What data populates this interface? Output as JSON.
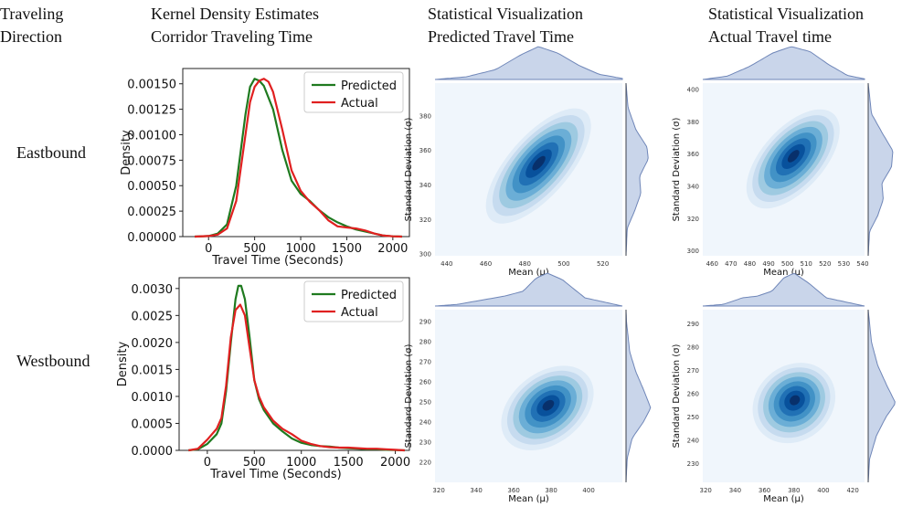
{
  "headers": {
    "direction": [
      "Traveling",
      "Direction"
    ],
    "kde": [
      "Kernel Density Estimates",
      "Corridor Traveling Time"
    ],
    "pred": [
      "Statistical Visualization",
      "Predicted Travel Time"
    ],
    "actual": [
      "Statistical Visualization",
      "Actual Travel time"
    ]
  },
  "rows": [
    "Eastbound",
    "Westbound"
  ],
  "colors": {
    "predicted": "#1f7a1f",
    "actual": "#e02020",
    "kde_outline": "#6f86b8",
    "kde_fill": "#c9d5ea"
  },
  "chart_data": [
    {
      "id": "east_kde",
      "type": "line",
      "xlabel": "Travel Time (Seconds)",
      "ylabel": "Density",
      "xlim": [
        -280,
        2180
      ],
      "ylim": [
        0,
        0.00165
      ],
      "xticks": [
        0,
        500,
        1000,
        1500,
        2000
      ],
      "yticks": [
        "0.00000",
        "0.00025",
        "0.00050",
        "0.00075",
        "0.00100",
        "0.00125",
        "0.00150"
      ],
      "ytick_values": [
        0,
        0.00025,
        0.0005,
        0.00075,
        0.001,
        0.00125,
        0.0015
      ],
      "legend": [
        "Predicted",
        "Actual"
      ],
      "series": [
        {
          "name": "Predicted",
          "x": [
            -150,
            0,
            100,
            200,
            300,
            400,
            450,
            500,
            550,
            600,
            700,
            800,
            900,
            1000,
            1100,
            1200,
            1300,
            1400,
            1500,
            1600,
            1700,
            1800,
            1900,
            2000,
            2100
          ],
          "y": [
            0,
            5e-06,
            3e-05,
            0.00012,
            0.0005,
            0.0012,
            0.00147,
            0.00155,
            0.00153,
            0.00148,
            0.00125,
            0.00085,
            0.00055,
            0.00042,
            0.00035,
            0.00026,
            0.00019,
            0.00014,
            0.0001,
            7e-05,
            5e-05,
            3e-05,
            1e-05,
            3e-06,
            0
          ]
        },
        {
          "name": "Actual",
          "x": [
            -150,
            0,
            100,
            200,
            300,
            400,
            450,
            500,
            550,
            600,
            650,
            700,
            800,
            900,
            1000,
            1100,
            1200,
            1300,
            1400,
            1500,
            1600,
            1700,
            1800,
            1900,
            2000,
            2100
          ],
          "y": [
            0,
            5e-06,
            2e-05,
            8e-05,
            0.00035,
            0.001,
            0.00132,
            0.00147,
            0.00153,
            0.00155,
            0.00152,
            0.00142,
            0.00105,
            0.00065,
            0.00045,
            0.00034,
            0.00026,
            0.00016,
            0.0001,
            9e-05,
            8e-05,
            6e-05,
            3e-05,
            1e-05,
            3e-06,
            0
          ]
        }
      ]
    },
    {
      "id": "west_kde",
      "type": "line",
      "xlabel": "Travel Time (Seconds)",
      "ylabel": "Density",
      "xlim": [
        -300,
        2150
      ],
      "ylim": [
        0,
        0.0032
      ],
      "xticks": [
        0,
        500,
        1000,
        1500,
        2000
      ],
      "yticks": [
        "0.0000",
        "0.0005",
        "0.0010",
        "0.0015",
        "0.0020",
        "0.0025",
        "0.0030"
      ],
      "ytick_values": [
        0,
        0.0005,
        0.001,
        0.0015,
        0.002,
        0.0025,
        0.003
      ],
      "legend": [
        "Predicted",
        "Actual"
      ],
      "series": [
        {
          "name": "Predicted",
          "x": [
            -200,
            -100,
            0,
            100,
            150,
            200,
            250,
            300,
            330,
            360,
            400,
            450,
            500,
            550,
            600,
            700,
            800,
            900,
            1000,
            1100,
            1200,
            1300,
            1400,
            1500,
            1600,
            1700,
            1800,
            1900,
            2000,
            2100
          ],
          "y": [
            0,
            2e-05,
            0.00012,
            0.0003,
            0.0005,
            0.0011,
            0.002,
            0.0028,
            0.00305,
            0.00305,
            0.0028,
            0.0021,
            0.0013,
            0.00095,
            0.00075,
            0.0005,
            0.00035,
            0.00022,
            0.00014,
            0.0001,
            8e-05,
            7e-05,
            5e-05,
            4e-05,
            3e-05,
            2e-05,
            2e-05,
            1e-05,
            5e-06,
            0
          ]
        },
        {
          "name": "Actual",
          "x": [
            -200,
            -100,
            0,
            100,
            150,
            200,
            250,
            300,
            350,
            400,
            450,
            500,
            550,
            600,
            700,
            800,
            900,
            1000,
            1100,
            1200,
            1300,
            1400,
            1500,
            1600,
            1700,
            1800,
            1900,
            2000,
            2100
          ],
          "y": [
            0,
            3e-05,
            0.0002,
            0.0004,
            0.0006,
            0.0012,
            0.0021,
            0.0026,
            0.0027,
            0.0025,
            0.0019,
            0.0013,
            0.001,
            0.0008,
            0.00055,
            0.0004,
            0.0003,
            0.00018,
            0.00012,
            8e-05,
            6e-05,
            5e-05,
            5e-05,
            4e-05,
            3e-05,
            3e-05,
            2e-05,
            1e-05,
            0
          ]
        }
      ]
    },
    {
      "id": "east_pred_joint",
      "type": "heatmap",
      "xlabel": "Mean (μ)",
      "ylabel": "Standard Deviation (σ)",
      "xlim": [
        434,
        530
      ],
      "ylim": [
        299,
        399
      ],
      "xticks": [
        440,
        460,
        480,
        500,
        520
      ],
      "yticks": [
        300,
        320,
        340,
        360,
        380
      ],
      "center": [
        487,
        351
      ],
      "spread": [
        16,
        11
      ],
      "rho": 0.72,
      "levels": 9,
      "marg_x": [
        [
          434,
          0
        ],
        [
          450,
          0.08
        ],
        [
          465,
          0.3
        ],
        [
          478,
          0.75
        ],
        [
          487,
          1
        ],
        [
          497,
          0.8
        ],
        [
          508,
          0.42
        ],
        [
          518,
          0.16
        ],
        [
          530,
          0.03
        ]
      ],
      "marg_y": [
        [
          299,
          0
        ],
        [
          315,
          0.05
        ],
        [
          325,
          0.35
        ],
        [
          335,
          0.6
        ],
        [
          345,
          0.55
        ],
        [
          355,
          0.9
        ],
        [
          362,
          0.85
        ],
        [
          372,
          0.4
        ],
        [
          385,
          0.08
        ],
        [
          399,
          0
        ]
      ]
    },
    {
      "id": "east_actual_joint",
      "type": "heatmap",
      "xlabel": "Mean (μ)",
      "ylabel": "Standard Deviation (σ)",
      "xlim": [
        455,
        541
      ],
      "ylim": [
        297,
        404
      ],
      "xticks": [
        460,
        470,
        480,
        490,
        500,
        510,
        520,
        530,
        540
      ],
      "yticks": [
        300,
        320,
        340,
        360,
        380,
        400
      ],
      "center": [
        503,
        357
      ],
      "spread": [
        14,
        12
      ],
      "rho": 0.7,
      "levels": 9,
      "marg_x": [
        [
          455,
          0
        ],
        [
          468,
          0.1
        ],
        [
          480,
          0.4
        ],
        [
          492,
          0.8
        ],
        [
          502,
          1
        ],
        [
          512,
          0.85
        ],
        [
          522,
          0.45
        ],
        [
          532,
          0.12
        ],
        [
          541,
          0.02
        ]
      ],
      "marg_y": [
        [
          297,
          0
        ],
        [
          312,
          0.05
        ],
        [
          322,
          0.35
        ],
        [
          332,
          0.55
        ],
        [
          342,
          0.5
        ],
        [
          352,
          0.85
        ],
        [
          362,
          0.9
        ],
        [
          372,
          0.55
        ],
        [
          385,
          0.12
        ],
        [
          404,
          0
        ]
      ]
    },
    {
      "id": "west_pred_joint",
      "type": "heatmap",
      "xlabel": "Mean (μ)",
      "ylabel": "Standard Deviation (σ)",
      "xlim": [
        318,
        418
      ],
      "ylim": [
        210,
        296
      ],
      "xticks": [
        320,
        340,
        360,
        380,
        400
      ],
      "yticks": [
        220,
        230,
        240,
        250,
        260,
        270,
        280,
        290
      ],
      "center": [
        378,
        247
      ],
      "spread": [
        12,
        11
      ],
      "rho": 0.45,
      "levels": 9,
      "marg_x": [
        [
          318,
          0
        ],
        [
          330,
          0.05
        ],
        [
          345,
          0.2
        ],
        [
          355,
          0.3
        ],
        [
          365,
          0.45
        ],
        [
          372,
          0.85
        ],
        [
          378,
          1
        ],
        [
          386,
          0.8
        ],
        [
          398,
          0.25
        ],
        [
          418,
          0
        ]
      ],
      "marg_y": [
        [
          210,
          0
        ],
        [
          222,
          0.05
        ],
        [
          232,
          0.25
        ],
        [
          240,
          0.7
        ],
        [
          247,
          1
        ],
        [
          255,
          0.75
        ],
        [
          265,
          0.4
        ],
        [
          275,
          0.15
        ],
        [
          290,
          0.02
        ],
        [
          296,
          0
        ]
      ]
    },
    {
      "id": "west_actual_joint",
      "type": "heatmap",
      "xlabel": "Mean (μ)",
      "ylabel": "Standard Deviation (σ)",
      "xlim": [
        318,
        428
      ],
      "ylim": [
        222,
        296
      ],
      "xticks": [
        320,
        340,
        360,
        380,
        400,
        420
      ],
      "yticks": [
        230,
        240,
        250,
        260,
        270,
        280,
        290
      ],
      "center": [
        380,
        256
      ],
      "spread": [
        13,
        10
      ],
      "rho": 0.5,
      "levels": 9,
      "marg_x": [
        [
          318,
          0
        ],
        [
          332,
          0.05
        ],
        [
          345,
          0.25
        ],
        [
          355,
          0.3
        ],
        [
          365,
          0.45
        ],
        [
          373,
          0.85
        ],
        [
          380,
          1
        ],
        [
          390,
          0.7
        ],
        [
          402,
          0.25
        ],
        [
          428,
          0
        ]
      ],
      "marg_y": [
        [
          222,
          0
        ],
        [
          232,
          0.05
        ],
        [
          242,
          0.3
        ],
        [
          250,
          0.65
        ],
        [
          256,
          1
        ],
        [
          263,
          0.7
        ],
        [
          272,
          0.35
        ],
        [
          282,
          0.12
        ],
        [
          296,
          0
        ]
      ]
    }
  ]
}
